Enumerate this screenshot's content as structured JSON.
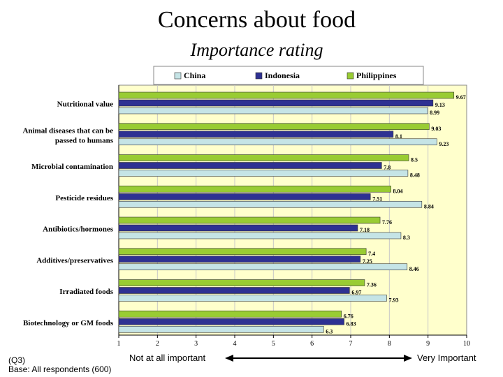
{
  "chart_data": {
    "type": "bar",
    "orientation": "horizontal",
    "title": "Concerns about food",
    "subtitle": "Importance rating",
    "categories": [
      [
        "Nutritional value"
      ],
      [
        "Animal diseases that can be",
        "passed to humans"
      ],
      [
        "Microbial contamination"
      ],
      [
        "Pesticide residues"
      ],
      [
        "Antibiotics/hormones"
      ],
      [
        "Additives/preservatives"
      ],
      [
        "Irradiated foods"
      ],
      [
        "Biotechnology or GM foods"
      ]
    ],
    "series": [
      {
        "name": "China",
        "color": "#c5e4e6",
        "values": [
          8.99,
          9.23,
          8.48,
          8.84,
          8.3,
          8.46,
          7.93,
          6.3
        ],
        "labels": [
          "8.99",
          "9.23",
          "8.48",
          "8.84",
          "8.3",
          "8.46",
          "7.93",
          "6.3"
        ]
      },
      {
        "name": "Indonesia",
        "color": "#2e3192",
        "values": [
          9.13,
          8.1,
          7.8,
          7.51,
          7.18,
          7.25,
          6.97,
          6.83
        ],
        "labels": [
          "9.13",
          "8.1",
          "7.8",
          "7.51",
          "7.18",
          "7.25",
          "6.97",
          "6.83"
        ]
      },
      {
        "name": "Philippines",
        "color": "#99cc33",
        "values": [
          9.67,
          9.03,
          8.5,
          8.04,
          7.76,
          7.4,
          7.36,
          6.76
        ],
        "labels": [
          "9.67",
          "9.03",
          "8.5",
          "8.04",
          "7.76",
          "7.4",
          "7.36",
          "6.76"
        ]
      }
    ],
    "xlim": [
      1,
      10
    ],
    "xticks": [
      "1",
      "2",
      "3",
      "4",
      "5",
      "6",
      "7",
      "8",
      "9",
      "10"
    ],
    "plot_background": "#ffffcc",
    "grid": true,
    "legend_position": "top"
  },
  "footnote": {
    "question": "(Q3)",
    "base": "Base: All respondents (600)"
  },
  "scale": {
    "low": "Not at all important",
    "high": "Very Important"
  }
}
